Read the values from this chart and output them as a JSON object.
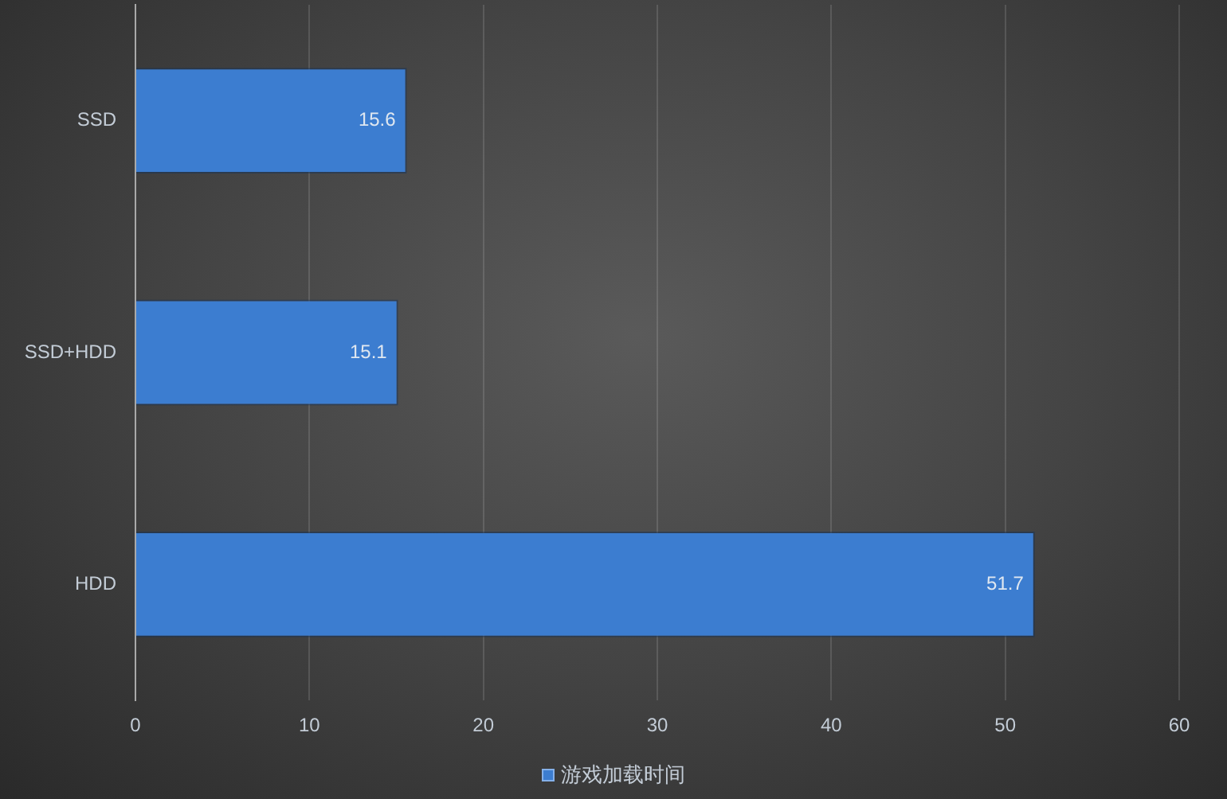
{
  "chart_data": {
    "type": "bar",
    "orientation": "horizontal",
    "categories": [
      "SSD",
      "SSD+HDD",
      "HDD"
    ],
    "series": [
      {
        "name": "游戏加载时间",
        "color": "#3c7dd0",
        "values": [
          15.6,
          15.1,
          51.7
        ]
      }
    ],
    "xlim": [
      0,
      60
    ],
    "xticks": [
      0,
      10,
      20,
      30,
      40,
      50,
      60
    ],
    "grid": "x",
    "legend": "bottom",
    "data_labels": true
  }
}
